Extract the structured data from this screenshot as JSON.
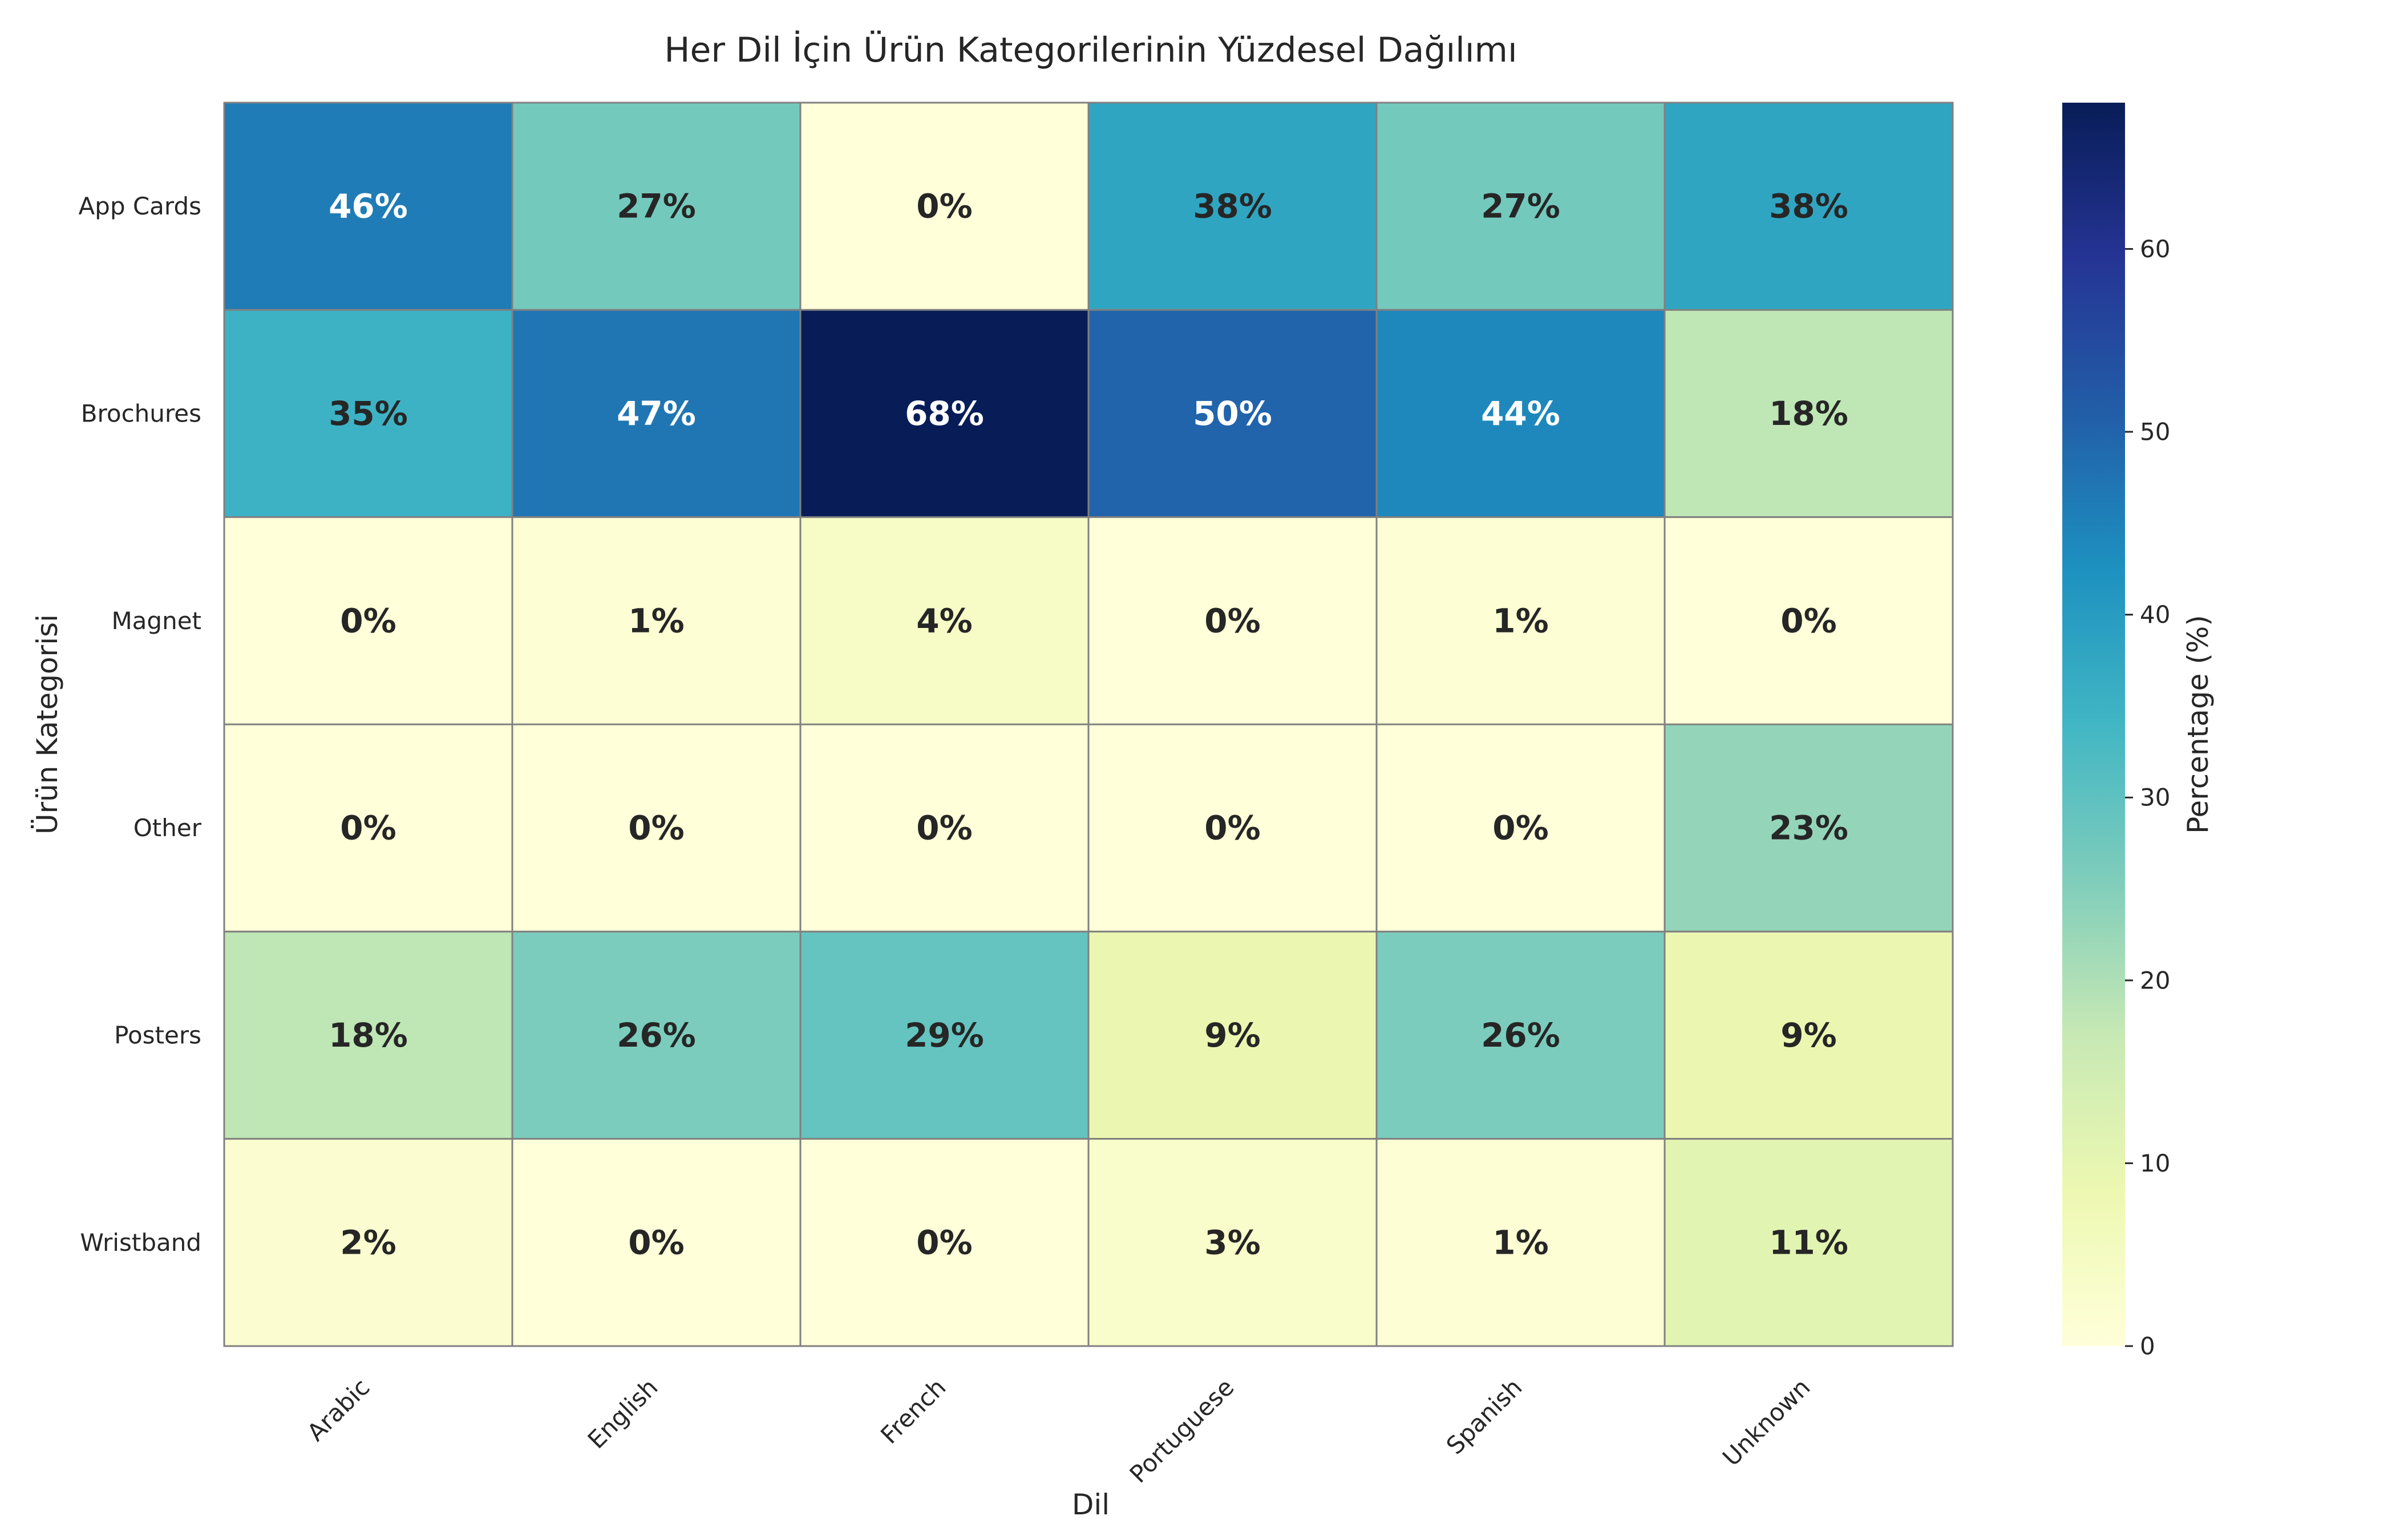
{
  "chart_data": {
    "type": "heatmap",
    "title": "Her Dil İçin Ürün Kategorilerinin Yüzdesel Dağılımı",
    "xlabel": "Dil",
    "ylabel": "Ürün Kategorisi",
    "x_categories": [
      "Arabic",
      "English",
      "French",
      "Portuguese",
      "Spanish",
      "Unknown"
    ],
    "y_categories": [
      "App Cards",
      "Brochures",
      "Magnet",
      "Other",
      "Posters",
      "Wristband"
    ],
    "values": [
      [
        46,
        27,
        0,
        38,
        27,
        38
      ],
      [
        35,
        47,
        68,
        50,
        44,
        18
      ],
      [
        0,
        1,
        4,
        0,
        1,
        0
      ],
      [
        0,
        0,
        0,
        0,
        0,
        23
      ],
      [
        18,
        26,
        29,
        9,
        26,
        9
      ],
      [
        2,
        0,
        0,
        3,
        1,
        11
      ]
    ],
    "value_format": "{v}%",
    "colormap": "YlGnBu",
    "colorbar": {
      "label": "Percentage (%)",
      "range": [
        0,
        68
      ],
      "ticks": [
        0,
        10,
        20,
        30,
        40,
        50,
        60
      ]
    },
    "colors": {
      "cell_border": "#808080",
      "text_dark": "#262626",
      "text_light": "#ffffff"
    }
  }
}
